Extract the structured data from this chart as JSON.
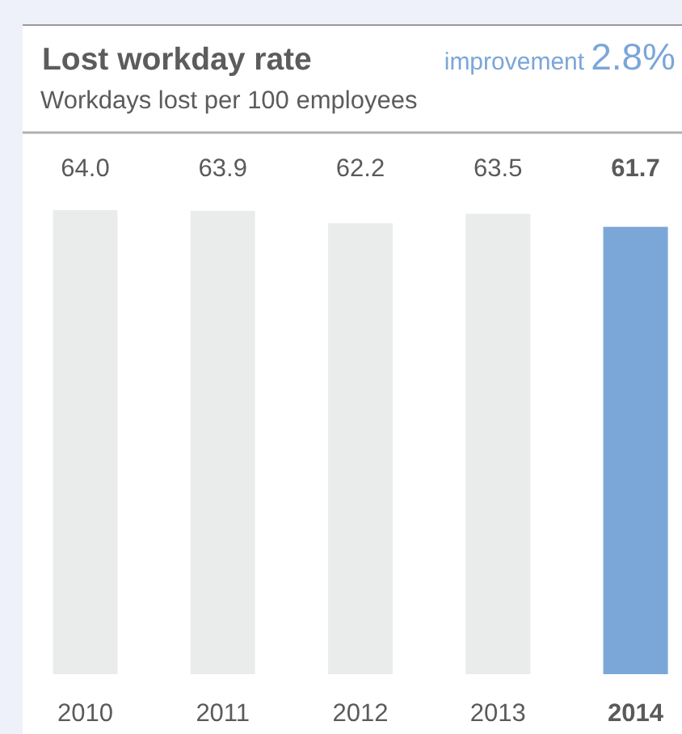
{
  "chart_data": {
    "type": "bar",
    "title": "Lost workday rate",
    "subtitle": "Workdays lost per 100 employees",
    "annotations": [
      "improvement",
      "2.8%"
    ],
    "categories": [
      "2010",
      "2011",
      "2012",
      "2013",
      "2014"
    ],
    "values": [
      64.0,
      63.9,
      62.2,
      63.5,
      61.7
    ],
    "value_labels": [
      "64.0",
      "63.9",
      "62.2",
      "63.5",
      "61.7"
    ],
    "colors": [
      "#eaeceb",
      "#eaeceb",
      "#eaeceb",
      "#eaeceb",
      "#7ba6d8"
    ]
  }
}
